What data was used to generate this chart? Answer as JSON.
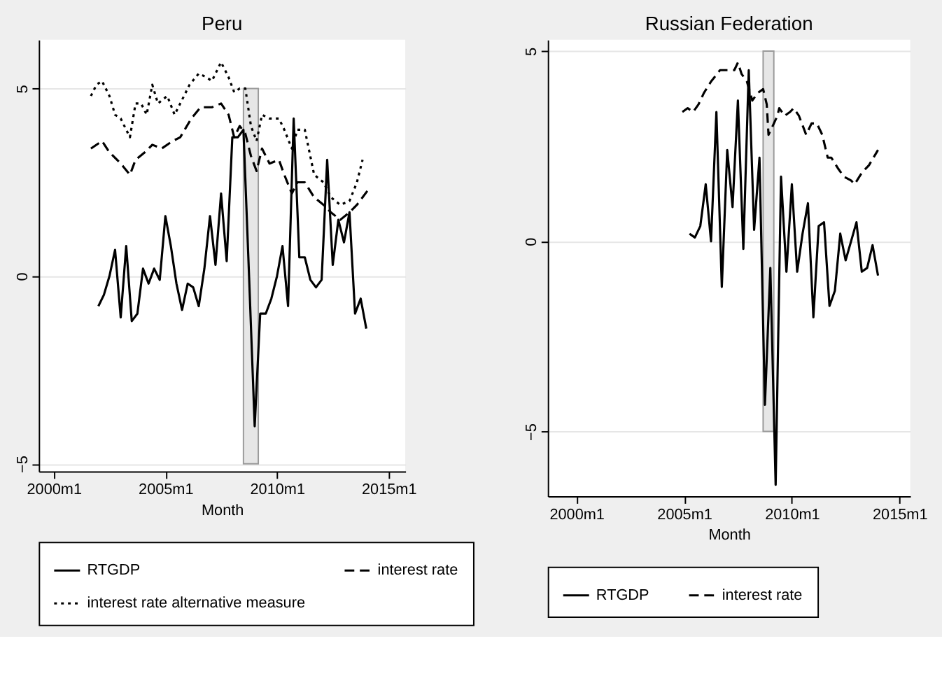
{
  "chart_data": [
    {
      "type": "line",
      "title": "Peru",
      "xlabel": "Month",
      "xlim": [
        "1999-05",
        "2015-10"
      ],
      "xticks": [
        {
          "value": "2000-01",
          "label": "2000m1"
        },
        {
          "value": "2005-01",
          "label": "2005m1"
        },
        {
          "value": "2010-01",
          "label": "2010m1"
        },
        {
          "value": "2015-01",
          "label": "2015m1"
        }
      ],
      "ylim": [
        -5.2,
        6.3
      ],
      "yticks": [
        -5,
        0,
        5
      ],
      "grid": "y",
      "legend": "bottom",
      "bands": [
        {
          "axis": "x",
          "from": "2008-07",
          "to": "2009-03",
          "color": "#e6e6e6"
        }
      ],
      "series": [
        {
          "name": "RTGDP",
          "color": "#000000",
          "line_style": "solid",
          "x": [
            "2002-01",
            "2002-04",
            "2002-07",
            "2002-10",
            "2003-01",
            "2003-04",
            "2003-07",
            "2003-10",
            "2004-01",
            "2004-04",
            "2004-07",
            "2004-10",
            "2005-01",
            "2005-04",
            "2005-07",
            "2005-10",
            "2006-01",
            "2006-04",
            "2006-07",
            "2006-10",
            "2007-01",
            "2007-04",
            "2007-07",
            "2007-10",
            "2008-01",
            "2008-04",
            "2008-07",
            "2008-10",
            "2009-01",
            "2009-04",
            "2009-07",
            "2009-10",
            "2010-01",
            "2010-04",
            "2010-07",
            "2010-10",
            "2011-01",
            "2011-04",
            "2011-07",
            "2011-10",
            "2012-01",
            "2012-04",
            "2012-07",
            "2012-10",
            "2013-01",
            "2013-04",
            "2013-07",
            "2013-10",
            "2014-01"
          ],
          "values": [
            -0.8,
            -0.5,
            0.0,
            0.7,
            -1.1,
            0.8,
            -1.2,
            -1.0,
            0.2,
            -0.2,
            0.2,
            -0.1,
            1.6,
            0.8,
            -0.2,
            -0.9,
            -0.2,
            -0.3,
            -0.8,
            0.2,
            1.6,
            0.3,
            2.2,
            0.4,
            3.7,
            3.7,
            3.9,
            0.0,
            -4.0,
            -1.0,
            -1.0,
            -0.6,
            0.0,
            0.8,
            -0.8,
            4.2,
            0.5,
            0.5,
            -0.1,
            -0.3,
            -0.1,
            3.1,
            0.3,
            1.5,
            0.9,
            1.7,
            -1.0,
            -0.6,
            -1.4
          ]
        },
        {
          "name": "interest rate",
          "color": "#000000",
          "line_style": "dashed",
          "x": [
            "2001-09",
            "2002-03",
            "2002-07",
            "2003-01",
            "2003-06",
            "2003-09",
            "2004-02",
            "2004-06",
            "2004-11",
            "2005-05",
            "2005-09",
            "2006-03",
            "2006-08",
            "2007-02",
            "2007-07",
            "2007-11",
            "2008-02",
            "2008-05",
            "2008-08",
            "2008-11",
            "2009-02",
            "2009-05",
            "2009-09",
            "2010-02",
            "2010-05",
            "2010-09",
            "2010-12",
            "2011-04",
            "2011-09",
            "2012-02",
            "2012-06",
            "2012-11",
            "2013-04",
            "2013-08",
            "2014-02"
          ],
          "values": [
            3.4,
            3.6,
            3.3,
            3.0,
            2.7,
            3.1,
            3.3,
            3.5,
            3.4,
            3.6,
            3.7,
            4.2,
            4.5,
            4.5,
            4.6,
            4.3,
            3.7,
            4.0,
            3.8,
            3.2,
            2.8,
            3.4,
            3.0,
            3.1,
            2.7,
            2.2,
            2.5,
            2.5,
            2.1,
            1.9,
            1.7,
            1.5,
            1.7,
            1.9,
            2.3
          ]
        },
        {
          "name": "interest rate alternative measure",
          "color": "#000000",
          "line_style": "dotted",
          "x": [
            "2001-09",
            "2001-12",
            "2002-03",
            "2002-07",
            "2002-10",
            "2003-01",
            "2003-06",
            "2003-09",
            "2003-12",
            "2004-03",
            "2004-06",
            "2004-09",
            "2005-02",
            "2005-06",
            "2005-09",
            "2006-02",
            "2006-07",
            "2006-11",
            "2007-02",
            "2007-07",
            "2007-11",
            "2008-02",
            "2008-05",
            "2008-08",
            "2008-11",
            "2009-02",
            "2009-05",
            "2009-09",
            "2010-02",
            "2010-05",
            "2010-09",
            "2010-12",
            "2011-04",
            "2011-09",
            "2012-02",
            "2012-06",
            "2012-11",
            "2013-04",
            "2013-08",
            "2013-11"
          ],
          "values": [
            4.8,
            5.1,
            5.2,
            4.8,
            4.3,
            4.2,
            3.7,
            4.6,
            4.6,
            4.3,
            5.1,
            4.6,
            4.8,
            4.3,
            4.6,
            5.1,
            5.4,
            5.3,
            5.2,
            5.7,
            5.3,
            4.9,
            5.0,
            5.0,
            4.0,
            3.6,
            4.3,
            4.2,
            4.2,
            3.9,
            3.4,
            3.9,
            3.9,
            2.7,
            2.5,
            2.1,
            1.9,
            2.0,
            2.5,
            3.1
          ]
        }
      ]
    },
    {
      "type": "line",
      "title": "Russian Federation",
      "xlabel": "Month",
      "xlim": [
        "1998-09",
        "2015-07"
      ],
      "xticks": [
        {
          "value": "2000-01",
          "label": "2000m1"
        },
        {
          "value": "2005-01",
          "label": "2005m1"
        },
        {
          "value": "2010-01",
          "label": "2010m1"
        },
        {
          "value": "2015-01",
          "label": "2015m1"
        }
      ],
      "ylim": [
        -6.7,
        5.3
      ],
      "yticks": [
        -5,
        0,
        5
      ],
      "grid": "y",
      "legend": "bottom",
      "bands": [
        {
          "axis": "x",
          "from": "2008-09",
          "to": "2009-03",
          "color": "#e6e6e6"
        }
      ],
      "series": [
        {
          "name": "RTGDP",
          "color": "#000000",
          "line_style": "solid",
          "x": [
            "2005-04",
            "2005-07",
            "2005-10",
            "2006-01",
            "2006-04",
            "2006-07",
            "2006-10",
            "2007-01",
            "2007-04",
            "2007-07",
            "2007-10",
            "2008-01",
            "2008-04",
            "2008-07",
            "2008-10",
            "2009-01",
            "2009-04",
            "2009-07",
            "2009-10",
            "2010-01",
            "2010-04",
            "2010-07",
            "2010-10",
            "2011-01",
            "2011-04",
            "2011-07",
            "2011-10",
            "2012-01",
            "2012-04",
            "2012-07",
            "2012-10",
            "2013-01",
            "2013-04",
            "2013-07",
            "2013-10",
            "2014-01"
          ],
          "values": [
            0.2,
            0.1,
            0.4,
            1.5,
            0.0,
            3.4,
            -1.2,
            2.4,
            0.9,
            3.7,
            -0.2,
            4.5,
            0.3,
            2.2,
            -4.3,
            -0.7,
            -6.4,
            1.7,
            -0.8,
            1.5,
            -0.8,
            0.2,
            1.0,
            -2.0,
            0.4,
            0.5,
            -1.7,
            -1.3,
            0.2,
            -0.5,
            0.0,
            0.5,
            -0.8,
            -0.7,
            -0.1,
            -0.9
          ]
        },
        {
          "name": "interest rate",
          "color": "#000000",
          "line_style": "dashed",
          "x": [
            "2004-12",
            "2005-03",
            "2005-06",
            "2005-09",
            "2005-12",
            "2006-04",
            "2006-09",
            "2006-12",
            "2007-05",
            "2007-07",
            "2007-09",
            "2007-12",
            "2008-03",
            "2008-06",
            "2008-09",
            "2008-11",
            "2008-12",
            "2009-02",
            "2009-05",
            "2009-06",
            "2009-09",
            "2009-12",
            "2010-02",
            "2010-05",
            "2010-09",
            "2010-12",
            "2011-03",
            "2011-06",
            "2011-09",
            "2011-11",
            "2012-03",
            "2012-06",
            "2012-10",
            "2012-12",
            "2013-04",
            "2013-08",
            "2014-01"
          ],
          "values": [
            3.4,
            3.5,
            3.4,
            3.6,
            3.9,
            4.2,
            4.5,
            4.5,
            4.5,
            4.7,
            4.4,
            4.2,
            3.7,
            3.9,
            4.0,
            3.6,
            2.8,
            3.0,
            3.3,
            3.5,
            3.3,
            3.4,
            3.5,
            3.3,
            2.8,
            3.1,
            3.1,
            2.8,
            2.2,
            2.2,
            1.9,
            1.7,
            1.6,
            1.5,
            1.8,
            2.0,
            2.4
          ]
        }
      ]
    }
  ]
}
